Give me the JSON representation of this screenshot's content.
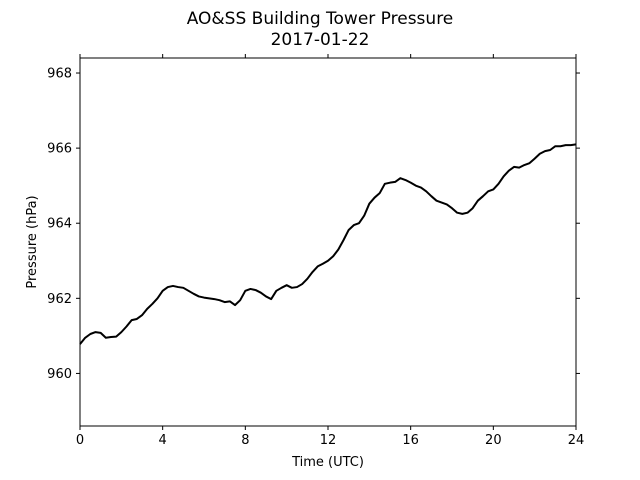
{
  "chart_data": {
    "type": "line",
    "title": "AO&SS Building Tower Pressure",
    "subtitle": "2017-01-22",
    "xlabel": "Time (UTC)",
    "ylabel": "Pressure (hPa)",
    "xlim": [
      0,
      24
    ],
    "ylim": [
      958.6,
      968.4
    ],
    "xticks": [
      0,
      4,
      8,
      12,
      16,
      20,
      24
    ],
    "yticks": [
      960,
      962,
      964,
      966,
      968
    ],
    "grid": false,
    "line_color": "#000000",
    "series": [
      {
        "x": [
          0,
          0.25,
          0.5,
          0.75,
          1.0,
          1.25,
          1.5,
          1.75,
          2.0,
          2.25,
          2.5,
          2.75,
          3.0,
          3.25,
          3.5,
          3.75,
          4.0,
          4.25,
          4.5,
          4.75,
          5.0,
          5.25,
          5.5,
          5.75,
          6.0,
          6.25,
          6.5,
          6.75,
          7.0,
          7.25,
          7.5,
          7.75,
          8.0,
          8.25,
          8.5,
          8.75,
          9.0,
          9.25,
          9.5,
          9.75,
          10.0,
          10.25,
          10.5,
          10.75,
          11.0,
          11.25,
          11.5,
          11.75,
          12.0,
          12.25,
          12.5,
          12.75,
          13.0,
          13.25,
          13.5,
          13.75,
          14.0,
          14.25,
          14.5,
          14.75,
          15.0,
          15.25,
          15.5,
          15.75,
          16.0,
          16.25,
          16.5,
          16.75,
          17.0,
          17.25,
          17.5,
          17.75,
          18.0,
          18.25,
          18.5,
          18.75,
          19.0,
          19.25,
          19.5,
          19.75,
          20.0,
          20.25,
          20.5,
          20.75,
          21.0,
          21.25,
          21.5,
          21.75,
          22.0,
          22.25,
          22.5,
          22.75,
          23.0,
          23.25,
          23.5,
          23.75,
          24.0
        ],
        "values": [
          960.78,
          960.95,
          961.05,
          961.1,
          961.08,
          960.95,
          960.97,
          960.98,
          961.1,
          961.25,
          961.42,
          961.45,
          961.55,
          961.72,
          961.85,
          962.0,
          962.2,
          962.3,
          962.33,
          962.3,
          962.28,
          962.2,
          962.12,
          962.05,
          962.02,
          962.0,
          961.98,
          961.95,
          961.9,
          961.92,
          961.82,
          961.95,
          962.2,
          962.25,
          962.22,
          962.15,
          962.05,
          961.98,
          962.2,
          962.28,
          962.35,
          962.28,
          962.3,
          962.38,
          962.52,
          962.7,
          962.85,
          962.92,
          963.0,
          963.12,
          963.3,
          963.55,
          963.82,
          963.95,
          964.0,
          964.2,
          964.52,
          964.68,
          964.8,
          965.05,
          965.08,
          965.1,
          965.2,
          965.15,
          965.08,
          965.0,
          964.95,
          964.85,
          964.72,
          964.6,
          964.55,
          964.5,
          964.4,
          964.28,
          964.25,
          964.28,
          964.4,
          964.6,
          964.72,
          964.85,
          964.9,
          965.05,
          965.25,
          965.4,
          965.5,
          965.48,
          965.55,
          965.6,
          965.72,
          965.85,
          965.92,
          965.95,
          966.05,
          966.05,
          966.08,
          966.08,
          966.1
        ]
      }
    ]
  }
}
